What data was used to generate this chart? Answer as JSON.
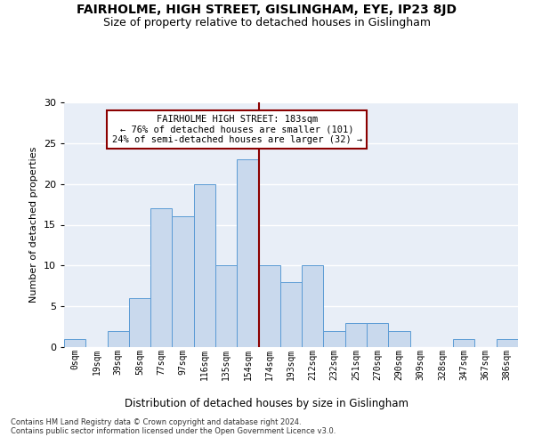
{
  "title": "FAIRHOLME, HIGH STREET, GISLINGHAM, EYE, IP23 8JD",
  "subtitle": "Size of property relative to detached houses in Gislingham",
  "xlabel": "Distribution of detached houses by size in Gislingham",
  "ylabel": "Number of detached properties",
  "bin_labels": [
    "0sqm",
    "19sqm",
    "39sqm",
    "58sqm",
    "77sqm",
    "97sqm",
    "116sqm",
    "135sqm",
    "154sqm",
    "174sqm",
    "193sqm",
    "212sqm",
    "232sqm",
    "251sqm",
    "270sqm",
    "290sqm",
    "309sqm",
    "328sqm",
    "347sqm",
    "367sqm",
    "386sqm"
  ],
  "bar_values": [
    1,
    0,
    2,
    6,
    17,
    16,
    20,
    10,
    23,
    10,
    8,
    10,
    2,
    3,
    3,
    2,
    0,
    0,
    1,
    0,
    1
  ],
  "bar_color": "#c9d9ed",
  "bar_edgecolor": "#5b9bd5",
  "vline_bin": 9,
  "vline_color": "#8b0000",
  "annotation_text": "FAIRHOLME HIGH STREET: 183sqm\n← 76% of detached houses are smaller (101)\n24% of semi-detached houses are larger (32) →",
  "annotation_box_color": "white",
  "annotation_box_edgecolor": "#8b0000",
  "ylim": [
    0,
    30
  ],
  "yticks": [
    0,
    5,
    10,
    15,
    20,
    25,
    30
  ],
  "footer_text": "Contains HM Land Registry data © Crown copyright and database right 2024.\nContains public sector information licensed under the Open Government Licence v3.0.",
  "bg_color": "#e8eef7",
  "grid_color": "white",
  "title_fontsize": 10,
  "subtitle_fontsize": 9,
  "ylabel_fontsize": 8,
  "xlabel_fontsize": 8.5,
  "tick_fontsize": 7,
  "annotation_fontsize": 7.5,
  "footer_fontsize": 6
}
